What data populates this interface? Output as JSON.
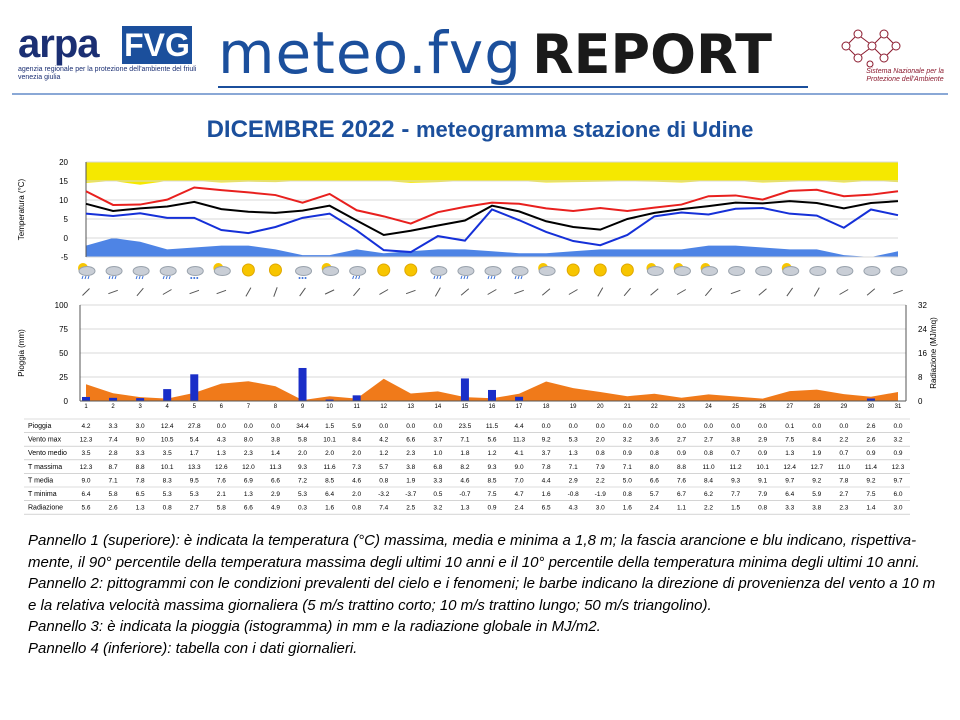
{
  "header": {
    "arpa_word": "arpa",
    "fvg_word": "FVG",
    "arpa_subtitle": "agenzia regionale per la protezione dell'ambiente del friuli venezia giulia",
    "meteo_word": "meteo.fvg",
    "report_word": "REPORT",
    "snpa_text": "Sistema Nazionale per la Protezione dell'Ambiente"
  },
  "title": {
    "part1": "DICEMBRE 2022 - ",
    "part2": "meteogramma  stazione di Udine"
  },
  "colors": {
    "tmax": "#e8201e",
    "tmed": "#000000",
    "tmin": "#1530d8",
    "band_orange": "#f5e800",
    "band_blue": "#2f6fe0",
    "rain": "#1a2ec8",
    "radiation": "#f07a1a"
  },
  "chart_data": [
    {
      "type": "line",
      "panel": "temperatura",
      "ylabel": "Temperatura (°C)",
      "ylim": [
        -5,
        20
      ],
      "yticks": [
        -5,
        0,
        5,
        10,
        15,
        20
      ],
      "x": [
        1,
        2,
        3,
        4,
        5,
        6,
        7,
        8,
        9,
        10,
        11,
        12,
        13,
        14,
        15,
        16,
        17,
        18,
        19,
        20,
        21,
        22,
        23,
        24,
        25,
        26,
        27,
        28,
        29,
        30,
        31
      ],
      "series": [
        {
          "name": "T massima",
          "values": [
            12.3,
            8.7,
            8.8,
            10.1,
            13.3,
            12.6,
            12.0,
            11.3,
            9.3,
            11.6,
            7.3,
            5.7,
            3.8,
            6.8,
            8.2,
            9.3,
            9.0,
            7.8,
            7.1,
            7.9,
            7.1,
            8.0,
            8.8,
            11.0,
            11.2,
            10.1,
            12.4,
            12.7,
            11.0,
            11.4,
            12.3
          ]
        },
        {
          "name": "T media",
          "values": [
            9.0,
            7.1,
            7.8,
            8.3,
            9.5,
            7.6,
            6.9,
            6.6,
            7.2,
            8.5,
            4.6,
            0.8,
            1.9,
            3.3,
            4.6,
            8.5,
            7.0,
            4.4,
            2.9,
            2.2,
            5.0,
            6.6,
            7.6,
            8.4,
            9.3,
            9.1,
            9.7,
            9.2,
            7.8,
            9.2,
            9.7
          ]
        },
        {
          "name": "T minima",
          "values": [
            6.4,
            5.8,
            6.5,
            5.3,
            5.3,
            2.1,
            1.3,
            2.9,
            5.3,
            6.4,
            2.0,
            -3.2,
            -3.7,
            0.5,
            -0.7,
            7.5,
            4.7,
            1.6,
            -0.8,
            -1.9,
            0.8,
            5.7,
            6.7,
            6.2,
            7.7,
            7.9,
            6.4,
            5.9,
            2.7,
            7.5,
            6.0
          ]
        }
      ],
      "band_p90_tmax": [
        14.5,
        15,
        14,
        15,
        15,
        14.6,
        14.8,
        14.7,
        15,
        15,
        15,
        15,
        14.5,
        14.7,
        15,
        15,
        15,
        14.6,
        14.7,
        14.8,
        14.9,
        14.8,
        14.6,
        15,
        15,
        14.6,
        14.8,
        15,
        14.6,
        15,
        14.7
      ],
      "band_p10_tmin": [
        -2,
        0,
        -1,
        -3,
        -2.5,
        -2,
        -2,
        -3,
        -4.5,
        -4.5,
        -3,
        -4,
        -3.5,
        -3,
        -3,
        -3.5,
        -4,
        -4,
        -3.5,
        -3,
        -3,
        -3,
        -3,
        -2,
        -2,
        -2.5,
        -3,
        -3,
        -4.5,
        -5,
        -3.5
      ]
    },
    {
      "type": "bar",
      "panel": "pioggia e radiazione",
      "ylabel": "Pioggia (mm)",
      "y2label": "Radiazione (MJ/mq)",
      "ylim": [
        0,
        100
      ],
      "yticks": [
        0,
        25,
        50,
        75,
        100
      ],
      "y2lim": [
        0,
        32
      ],
      "y2ticks": [
        0,
        8,
        16,
        24,
        32
      ],
      "categories": [
        "1",
        "2",
        "3",
        "4",
        "5",
        "6",
        "7",
        "8",
        "9",
        "10",
        "11",
        "12",
        "13",
        "14",
        "15",
        "16",
        "17",
        "18",
        "19",
        "20",
        "21",
        "22",
        "23",
        "24",
        "25",
        "26",
        "27",
        "28",
        "29",
        "30",
        "31"
      ],
      "series": [
        {
          "name": "Pioggia",
          "type": "bar",
          "values": [
            4.2,
            3.3,
            3.0,
            12.4,
            27.8,
            0.0,
            0.0,
            0.0,
            34.4,
            1.5,
            5.9,
            0.0,
            0.0,
            0.0,
            23.5,
            11.5,
            4.4,
            0.0,
            0.0,
            0.0,
            0.0,
            0.0,
            0.0,
            0.0,
            0.0,
            0.0,
            0.1,
            0.0,
            0.0,
            2.6,
            0.0
          ]
        },
        {
          "name": "Radiazione",
          "type": "area",
          "values": [
            5.6,
            2.6,
            1.3,
            0.8,
            2.7,
            5.8,
            6.6,
            4.9,
            0.3,
            1.6,
            0.8,
            7.4,
            2.5,
            3.2,
            1.3,
            0.9,
            2.4,
            6.5,
            4.3,
            3.0,
            1.6,
            2.4,
            1.1,
            2.2,
            1.5,
            0.8,
            3.3,
            3.8,
            2.3,
            1.4,
            3.0
          ]
        }
      ]
    }
  ],
  "table": {
    "days": [
      "1",
      "2",
      "3",
      "4",
      "5",
      "6",
      "7",
      "8",
      "9",
      "10",
      "11",
      "12",
      "13",
      "14",
      "15",
      "16",
      "17",
      "18",
      "19",
      "20",
      "21",
      "22",
      "23",
      "24",
      "25",
      "26",
      "27",
      "28",
      "29",
      "30",
      "31"
    ],
    "rows": [
      {
        "label": "Pioggia",
        "values": [
          "4.2",
          "3.3",
          "3.0",
          "12.4",
          "27.8",
          "0.0",
          "0.0",
          "0.0",
          "34.4",
          "1.5",
          "5.9",
          "0.0",
          "0.0",
          "0.0",
          "23.5",
          "11.5",
          "4.4",
          "0.0",
          "0.0",
          "0.0",
          "0.0",
          "0.0",
          "0.0",
          "0.0",
          "0.0",
          "0.0",
          "0.1",
          "0.0",
          "0.0",
          "2.6",
          "0.0"
        ]
      },
      {
        "label": "Vento max",
        "values": [
          "12.3",
          "7.4",
          "9.0",
          "10.5",
          "5.4",
          "4.3",
          "8.0",
          "3.8",
          "5.8",
          "10.1",
          "8.4",
          "4.2",
          "6.6",
          "3.7",
          "7.1",
          "5.6",
          "11.3",
          "9.2",
          "5.3",
          "2.0",
          "3.2",
          "3.6",
          "2.7",
          "2.7",
          "3.8",
          "2.9",
          "7.5",
          "8.4",
          "2.2",
          "2.6",
          "3.2"
        ]
      },
      {
        "label": "Vento medio",
        "values": [
          "3.5",
          "2.8",
          "3.3",
          "3.5",
          "1.7",
          "1.3",
          "2.3",
          "1.4",
          "2.0",
          "2.0",
          "2.0",
          "1.2",
          "2.3",
          "1.0",
          "1.8",
          "1.2",
          "4.1",
          "3.7",
          "1.3",
          "0.8",
          "0.9",
          "0.8",
          "0.9",
          "0.8",
          "0.7",
          "0.9",
          "1.3",
          "1.9",
          "0.7",
          "0.9",
          "0.9"
        ]
      },
      {
        "label": "T massima",
        "values": [
          "12.3",
          "8.7",
          "8.8",
          "10.1",
          "13.3",
          "12.6",
          "12.0",
          "11.3",
          "9.3",
          "11.6",
          "7.3",
          "5.7",
          "3.8",
          "6.8",
          "8.2",
          "9.3",
          "9.0",
          "7.8",
          "7.1",
          "7.9",
          "7.1",
          "8.0",
          "8.8",
          "11.0",
          "11.2",
          "10.1",
          "12.4",
          "12.7",
          "11.0",
          "11.4",
          "12.3"
        ]
      },
      {
        "label": "T media",
        "values": [
          "9.0",
          "7.1",
          "7.8",
          "8.3",
          "9.5",
          "7.6",
          "6.9",
          "6.6",
          "7.2",
          "8.5",
          "4.6",
          "0.8",
          "1.9",
          "3.3",
          "4.6",
          "8.5",
          "7.0",
          "4.4",
          "2.9",
          "2.2",
          "5.0",
          "6.6",
          "7.6",
          "8.4",
          "9.3",
          "9.1",
          "9.7",
          "9.2",
          "7.8",
          "9.2",
          "9.7"
        ]
      },
      {
        "label": "T minima",
        "values": [
          "6.4",
          "5.8",
          "6.5",
          "5.3",
          "5.3",
          "2.1",
          "1.3",
          "2.9",
          "5.3",
          "6.4",
          "2.0",
          "-3.2",
          "-3.7",
          "0.5",
          "-0.7",
          "7.5",
          "4.7",
          "1.6",
          "-0.8",
          "-1.9",
          "0.8",
          "5.7",
          "6.7",
          "6.2",
          "7.7",
          "7.9",
          "6.4",
          "5.9",
          "2.7",
          "7.5",
          "6.0"
        ]
      },
      {
        "label": "Radiazione",
        "values": [
          "5.6",
          "2.6",
          "1.3",
          "0.8",
          "2.7",
          "5.8",
          "6.6",
          "4.9",
          "0.3",
          "1.6",
          "0.8",
          "7.4",
          "2.5",
          "3.2",
          "1.3",
          "0.9",
          "2.4",
          "6.5",
          "4.3",
          "3.0",
          "1.6",
          "2.4",
          "1.1",
          "2.2",
          "1.5",
          "0.8",
          "3.3",
          "3.8",
          "2.3",
          "1.4",
          "3.0"
        ]
      }
    ]
  },
  "weather_icons": [
    "partly-cloudy-rain",
    "cloudy-rain",
    "cloudy-rain",
    "cloudy-rain",
    "cloudy-snow",
    "partly-cloudy-sun",
    "sunny",
    "sunny",
    "cloudy-snow",
    "partly-cloudy-sun",
    "cloudy-rain",
    "sunny",
    "sunny",
    "cloudy-rain",
    "cloudy-rain",
    "cloudy-rain",
    "cloudy-rain",
    "partly-cloudy-sun",
    "sunny",
    "sunny",
    "sunny",
    "partly-cloudy-sun",
    "partly-cloudy-sun",
    "partly-cloudy-sun",
    "cloudy",
    "cloudy",
    "partly-cloudy-sun",
    "cloudy",
    "cloudy",
    "cloudy",
    "cloudy"
  ],
  "wind_barb_directions_deg": [
    225,
    200,
    230,
    210,
    200,
    200,
    240,
    250,
    235,
    205,
    230,
    210,
    200,
    240,
    220,
    210,
    200,
    220,
    210,
    240,
    230,
    220,
    210,
    230,
    200,
    220,
    235,
    240,
    210,
    220,
    200
  ],
  "caption": [
    "Pannello 1 (superiore): è indicata la temperatura (°C) massima, media e minima a 1,8 m; la fascia arancione e blu indicano, rispettiva-mente, il 90° percentile della temperatura massima degli ultimi 10 anni e il 10° percentile della temperatura minima degli ultimi 10 anni.",
    "Pannello 2: pittogrammi con le condizioni prevalenti del cielo e i fenomeni; le barbe indicano la direzione di provenienza del vento a 10 m e la relativa velocità massima giornaliera (5 m/s trattino corto; 10 m/s trattino lungo; 50 m/s triangolino).",
    "Pannello 3: è indicata la pioggia (istogramma) in mm e la radiazione globale in MJ/m2.",
    "Pannello 4 (inferiore): tabella con i dati giornalieri."
  ]
}
